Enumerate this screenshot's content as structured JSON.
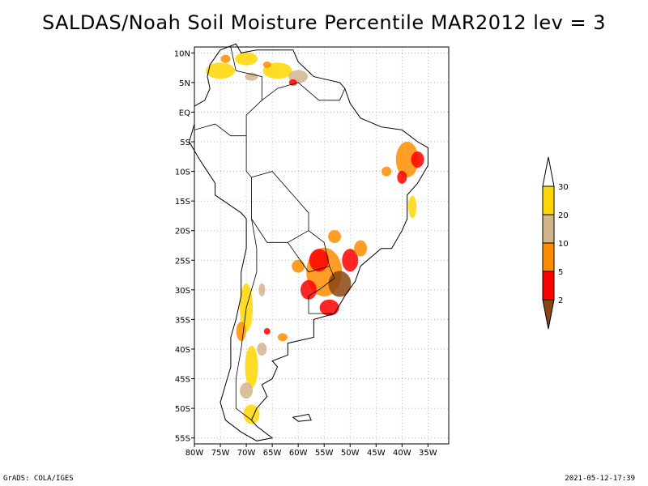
{
  "title": "SALDAS/Noah Soil Moisture Percentile MAR2012 lev = 3",
  "map": {
    "lon_range": [
      -80,
      -31
    ],
    "lat_range": [
      -56,
      11
    ],
    "lon_ticks": [
      {
        "value": -80,
        "label": "80W"
      },
      {
        "value": -75,
        "label": "75W"
      },
      {
        "value": -70,
        "label": "70W"
      },
      {
        "value": -65,
        "label": "65W"
      },
      {
        "value": -60,
        "label": "60W"
      },
      {
        "value": -55,
        "label": "55W"
      },
      {
        "value": -50,
        "label": "50W"
      },
      {
        "value": -45,
        "label": "45W"
      },
      {
        "value": -40,
        "label": "40W"
      },
      {
        "value": -35,
        "label": "35W"
      }
    ],
    "lat_ticks": [
      {
        "value": 10,
        "label": "10N"
      },
      {
        "value": 5,
        "label": "5N"
      },
      {
        "value": 0,
        "label": "EQ"
      },
      {
        "value": -5,
        "label": "5S"
      },
      {
        "value": -10,
        "label": "10S"
      },
      {
        "value": -15,
        "label": "15S"
      },
      {
        "value": -20,
        "label": "20S"
      },
      {
        "value": -25,
        "label": "25S"
      },
      {
        "value": -30,
        "label": "30S"
      },
      {
        "value": -35,
        "label": "35S"
      },
      {
        "value": -40,
        "label": "40S"
      },
      {
        "value": -45,
        "label": "45S"
      },
      {
        "value": -50,
        "label": "50S"
      },
      {
        "value": -55,
        "label": "55S"
      }
    ],
    "grid": true
  },
  "colorbar": {
    "levels": [
      "2",
      "5",
      "10",
      "20",
      "30"
    ],
    "colors": [
      "#8b4513",
      "#ff0000",
      "#ff8c00",
      "#d2b48c",
      "#ffd700",
      "#ffffff"
    ]
  },
  "footer": {
    "left": "GrADS: COLA/IGES",
    "right": "2021-05-12-17:39"
  }
}
